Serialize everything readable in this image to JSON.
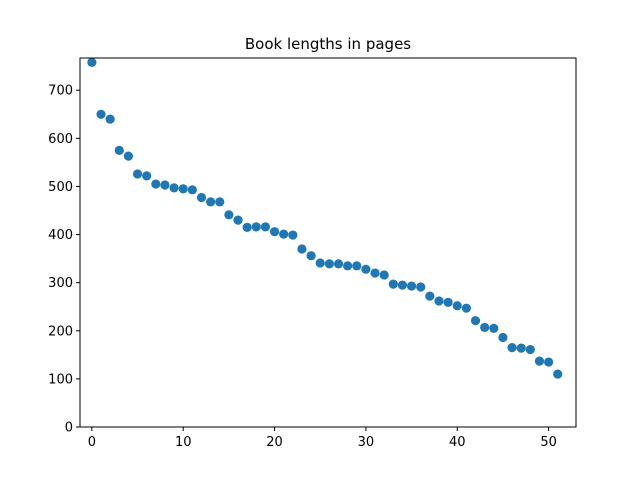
{
  "chart_data": {
    "type": "scatter",
    "title": "Book lengths in pages",
    "xlabel": "",
    "ylabel": "",
    "xlim": [
      -1.3,
      53.0
    ],
    "ylim": [
      0,
      767
    ],
    "xticks": [
      0,
      10,
      20,
      30,
      40,
      50
    ],
    "yticks": [
      0,
      100,
      200,
      300,
      400,
      500,
      600,
      700
    ],
    "marker_color": "#1f77b4",
    "grid": false,
    "series": [
      {
        "name": "pages",
        "x": [
          0,
          1,
          2,
          3,
          4,
          5,
          6,
          7,
          8,
          9,
          10,
          11,
          12,
          13,
          14,
          15,
          16,
          17,
          18,
          19,
          20,
          21,
          22,
          23,
          24,
          25,
          26,
          27,
          28,
          29,
          30,
          31,
          32,
          33,
          34,
          35,
          36,
          37,
          38,
          39,
          40,
          41,
          42,
          43,
          44,
          45,
          46,
          47,
          48,
          49,
          50,
          51
        ],
        "y": [
          758,
          650,
          640,
          575,
          563,
          526,
          522,
          505,
          503,
          497,
          495,
          493,
          477,
          468,
          468,
          441,
          430,
          415,
          416,
          416,
          406,
          401,
          399,
          370,
          356,
          341,
          339,
          339,
          335,
          335,
          328,
          320,
          316,
          297,
          295,
          293,
          291,
          272,
          262,
          259,
          252,
          247,
          221,
          207,
          205,
          186,
          165,
          164,
          161,
          137,
          135,
          110
        ]
      }
    ]
  }
}
